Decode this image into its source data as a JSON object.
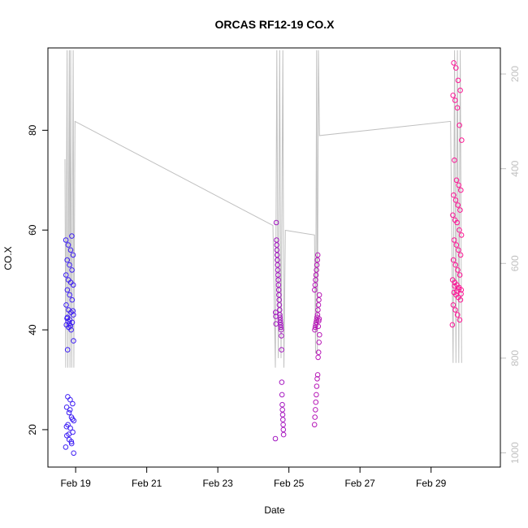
{
  "chart_data": {
    "type": "scatter",
    "title": "ORCAS RF12-19 CO.X",
    "xlabel": "Date",
    "ylabel": "CO.X",
    "x_unit": "day of February 2016",
    "xlim": [
      18.22,
      30.95
    ],
    "ylim": [
      12.5,
      96.5
    ],
    "x_ticks": [
      {
        "x": 19,
        "label": "Feb 19"
      },
      {
        "x": 21,
        "label": "Feb 21"
      },
      {
        "x": 23,
        "label": "Feb 23"
      },
      {
        "x": 25,
        "label": "Feb 25"
      },
      {
        "x": 27,
        "label": "Feb 27"
      },
      {
        "x": 29,
        "label": "Feb 29"
      }
    ],
    "y_ticks": [
      20,
      40,
      60,
      80
    ],
    "y2_axis": {
      "ylim": [
        1030,
        145
      ],
      "reversed": true,
      "ticks": [
        200,
        400,
        600,
        800,
        1000
      ],
      "color": "#c0c0c0"
    },
    "grid": false,
    "legend": "none",
    "series": [
      {
        "color_start": "#3b1ff5",
        "color_end": "#ff1493",
        "clusters": [
          {
            "x_range": [
              18.72,
              18.95
            ],
            "y_values": [
              16.5,
              17.2,
              18,
              18.8,
              19.5,
              20.3,
              21,
              21.8,
              22.5,
              23.4,
              24.5,
              25.2,
              26,
              26.6,
              15.3,
              17.6,
              19.1,
              20.6,
              22.1,
              24,
              36,
              37.8,
              40,
              40.5,
              41,
              41.5,
              42,
              42.5,
              43,
              43.5,
              44,
              45,
              46,
              47,
              48,
              49,
              49.5,
              50,
              51,
              52,
              53,
              54,
              55,
              56,
              57,
              58,
              58.8,
              41.2,
              42.3,
              43.8,
              40.8,
              41.7
            ]
          },
          {
            "x_range": [
              24.62,
              24.85
            ],
            "y_values": [
              18.2,
              19,
              20,
              21,
              22,
              23,
              24,
              25,
              27,
              29.5,
              36,
              38.8,
              40,
              40.5,
              41,
              41.5,
              42,
              42.5,
              43,
              44,
              45,
              46,
              47,
              48,
              49,
              50,
              51,
              52,
              53,
              54,
              55,
              56,
              57,
              58,
              61.5,
              41.2,
              42.7,
              43.5
            ]
          },
          {
            "x_range": [
              25.72,
              25.86
            ],
            "y_values": [
              21,
              22.5,
              24,
              25.5,
              27,
              28.7,
              30.2,
              31,
              34.5,
              35.5,
              37.5,
              39,
              40,
              40.5,
              41,
              41.5,
              42,
              42.5,
              43,
              44,
              45,
              46,
              47,
              48,
              49,
              50,
              51,
              52,
              53,
              54,
              55,
              40.7,
              41.8,
              42.2
            ]
          },
          {
            "x_range": [
              29.6,
              29.86
            ],
            "y_values": [
              41,
              42,
              43,
              44,
              45,
              46,
              46.5,
              47,
              47.5,
              48,
              48.5,
              49,
              49.5,
              50,
              51,
              52,
              53,
              54,
              55,
              56,
              57,
              58,
              59,
              60,
              61.5,
              62,
              63,
              64,
              65,
              66,
              67,
              68,
              69,
              70,
              74,
              78,
              81,
              84.5,
              86,
              87,
              88,
              90,
              92.5,
              93.5,
              47.2,
              48.2,
              47.8,
              48.8
            ]
          }
        ]
      }
    ],
    "line_series": {
      "axis": "y2",
      "color": "#c0c0c0",
      "points": [
        [
          18.7,
          380
        ],
        [
          18.72,
          820
        ],
        [
          18.76,
          150
        ],
        [
          18.78,
          820
        ],
        [
          18.82,
          150
        ],
        [
          18.84,
          820
        ],
        [
          18.86,
          150
        ],
        [
          18.89,
          820
        ],
        [
          18.93,
          150
        ],
        [
          18.95,
          820
        ],
        [
          18.98,
          300
        ],
        [
          24.55,
          520
        ],
        [
          24.62,
          820
        ],
        [
          24.66,
          150
        ],
        [
          24.7,
          800
        ],
        [
          24.74,
          150
        ],
        [
          24.78,
          800
        ],
        [
          24.83,
          150
        ],
        [
          24.86,
          820
        ],
        [
          24.9,
          530
        ],
        [
          25.72,
          540
        ],
        [
          25.75,
          790
        ],
        [
          25.78,
          150
        ],
        [
          25.8,
          790
        ],
        [
          25.83,
          150
        ],
        [
          25.86,
          330
        ],
        [
          29.55,
          300
        ],
        [
          29.62,
          810
        ],
        [
          29.66,
          150
        ],
        [
          29.7,
          810
        ],
        [
          29.74,
          150
        ],
        [
          29.78,
          810
        ],
        [
          29.82,
          150
        ],
        [
          29.86,
          810
        ]
      ]
    }
  }
}
